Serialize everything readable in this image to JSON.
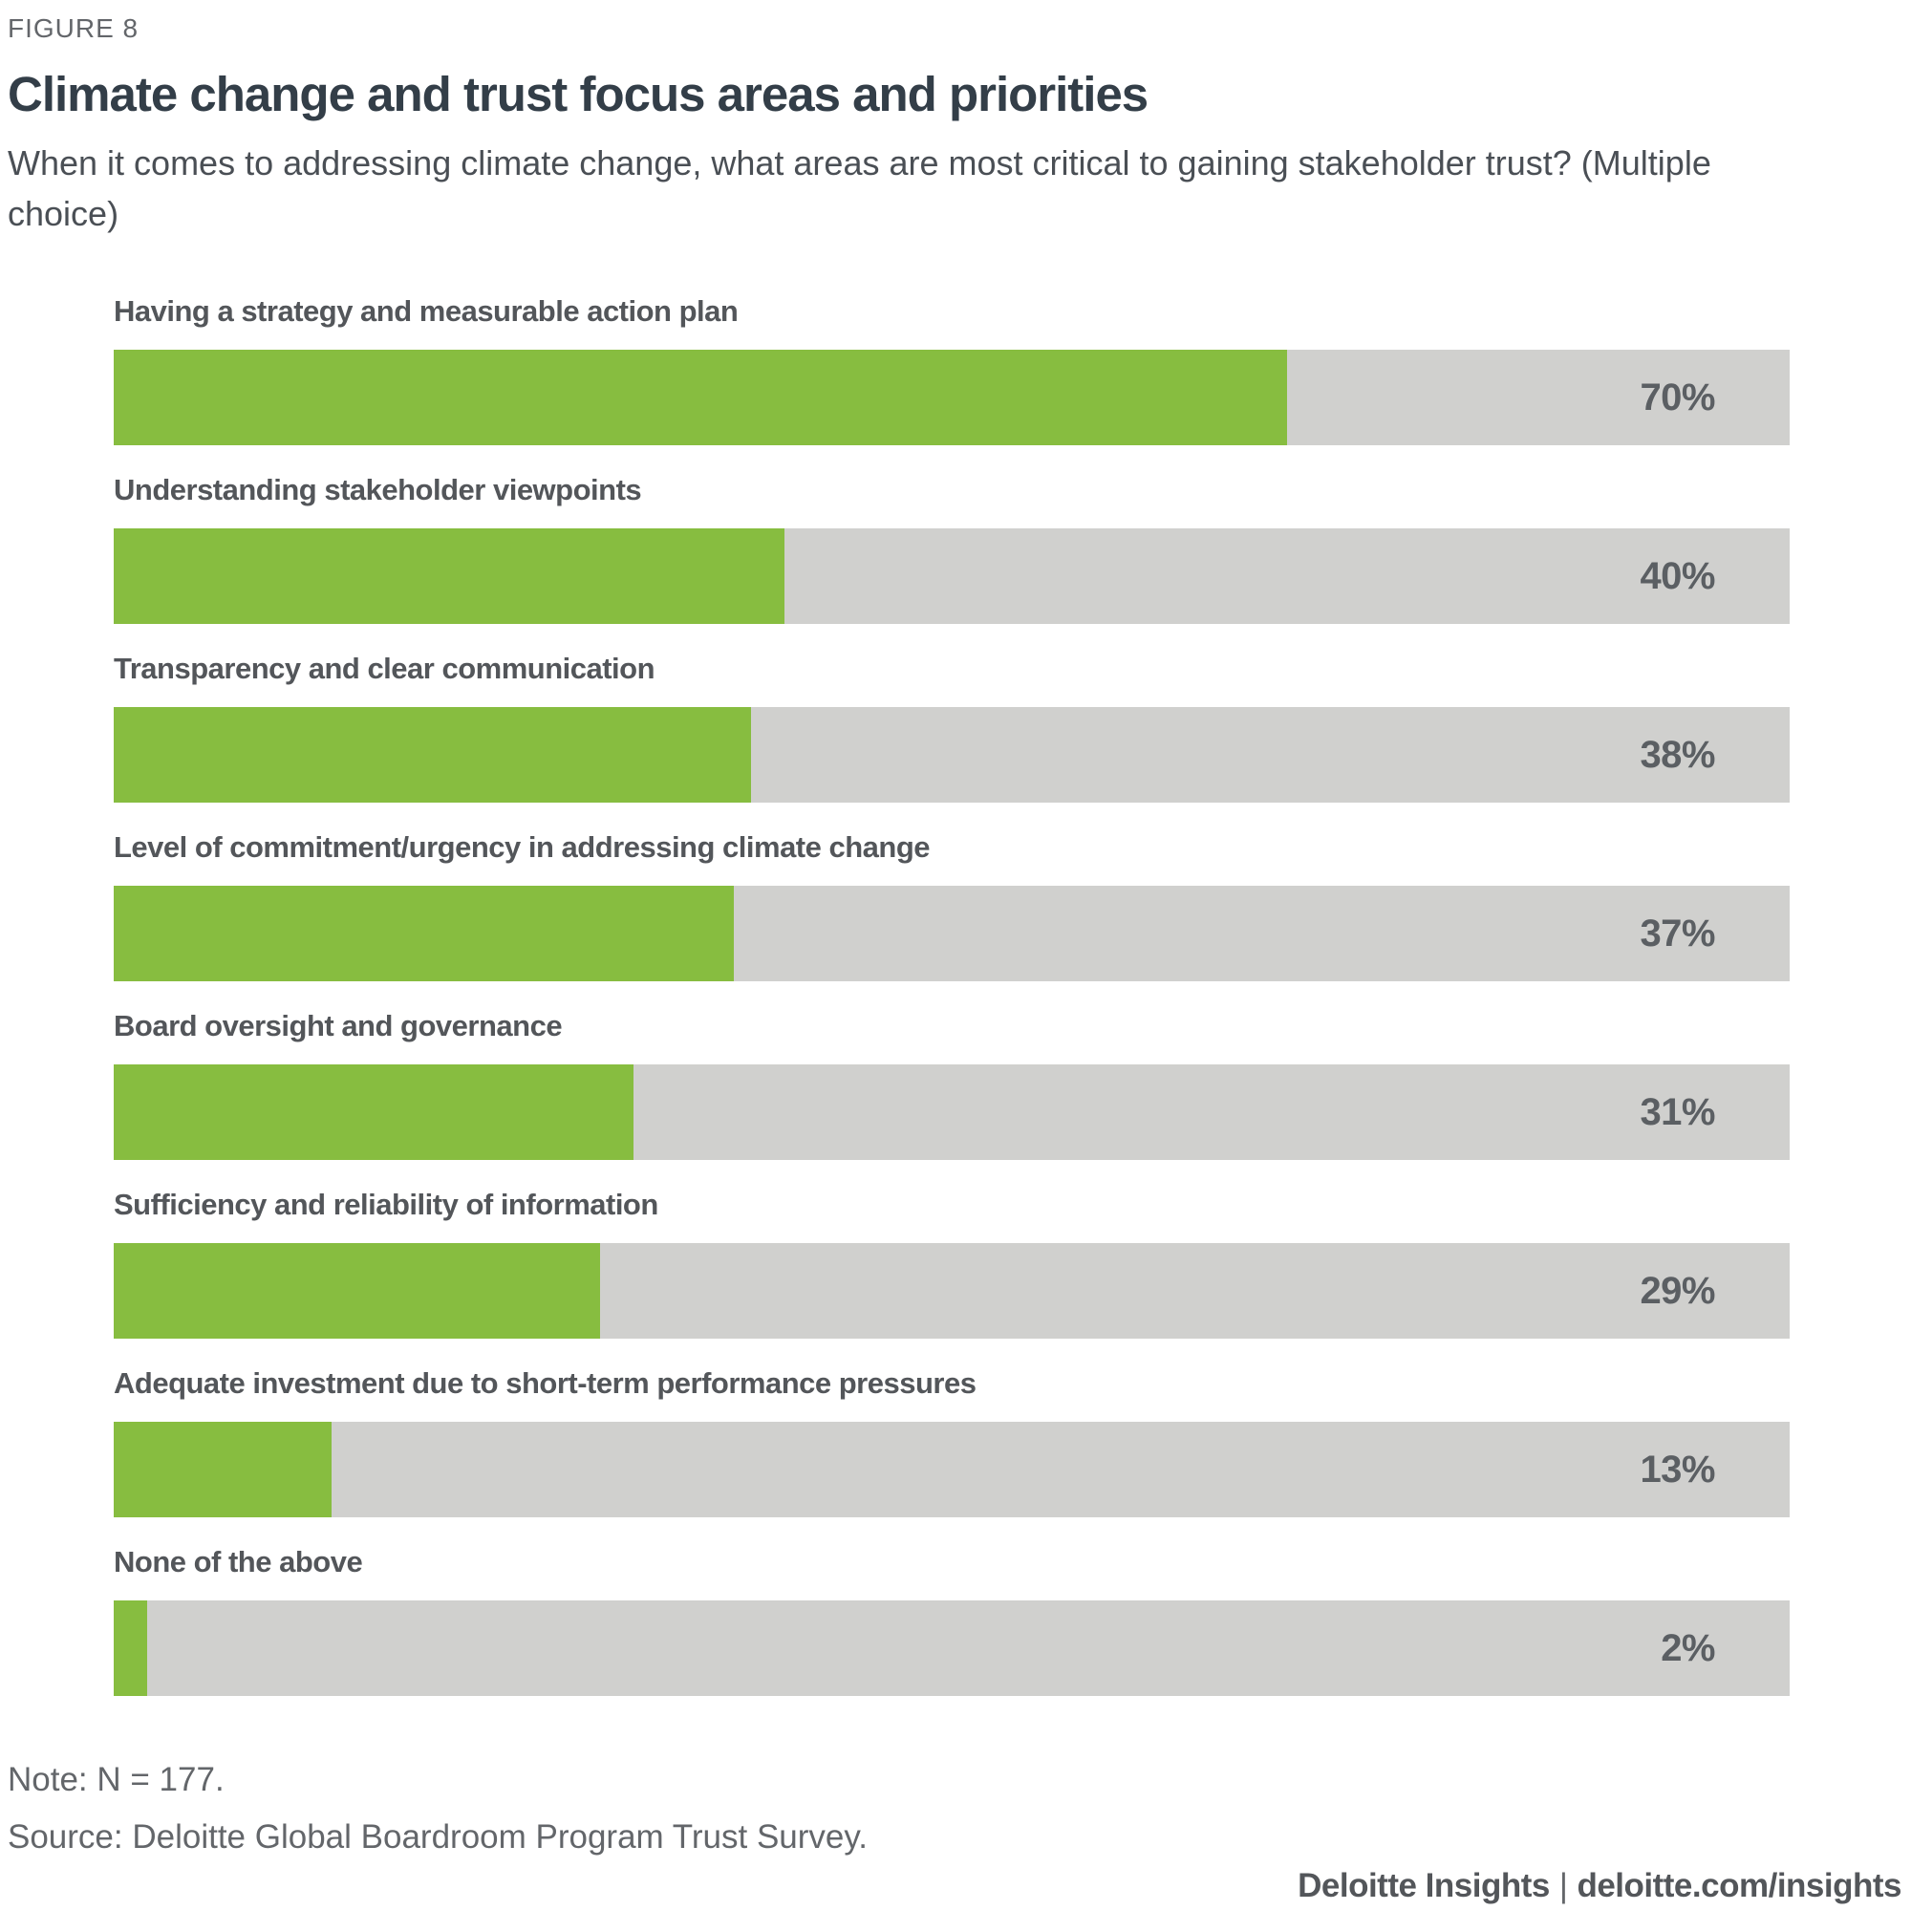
{
  "figure_label": "FIGURE 8",
  "title": "Climate change and trust focus areas and priorities",
  "subtitle": "When it comes to addressing climate change, what areas are most critical to gaining stakeholder trust? (Multiple choice)",
  "chart_data": {
    "type": "bar",
    "orientation": "horizontal",
    "categories": [
      "Having a strategy and measurable action plan",
      "Understanding stakeholder viewpoints",
      "Transparency and clear communication",
      "Level of commitment/urgency in addressing climate change",
      "Board oversight and governance",
      "Sufficiency and reliability of information",
      "Adequate investment due to short-term performance pressures",
      "None of the above"
    ],
    "values": [
      70,
      40,
      38,
      37,
      31,
      29,
      13,
      2
    ],
    "value_labels": [
      "70%",
      "40%",
      "38%",
      "37%",
      "31%",
      "29%",
      "13%",
      "2%"
    ],
    "unit": "%",
    "xlim": [
      0,
      100
    ],
    "grid": false,
    "legend": false,
    "bar_color": "#87BD40",
    "track_color": "#D0D0CE"
  },
  "notes": {
    "note": "Note: N = 177.",
    "source": "Source: Deloitte Global Boardroom Program Trust Survey."
  },
  "footer": {
    "brand": "Deloitte Insights",
    "separator": "|",
    "url": "deloitte.com/insights"
  }
}
